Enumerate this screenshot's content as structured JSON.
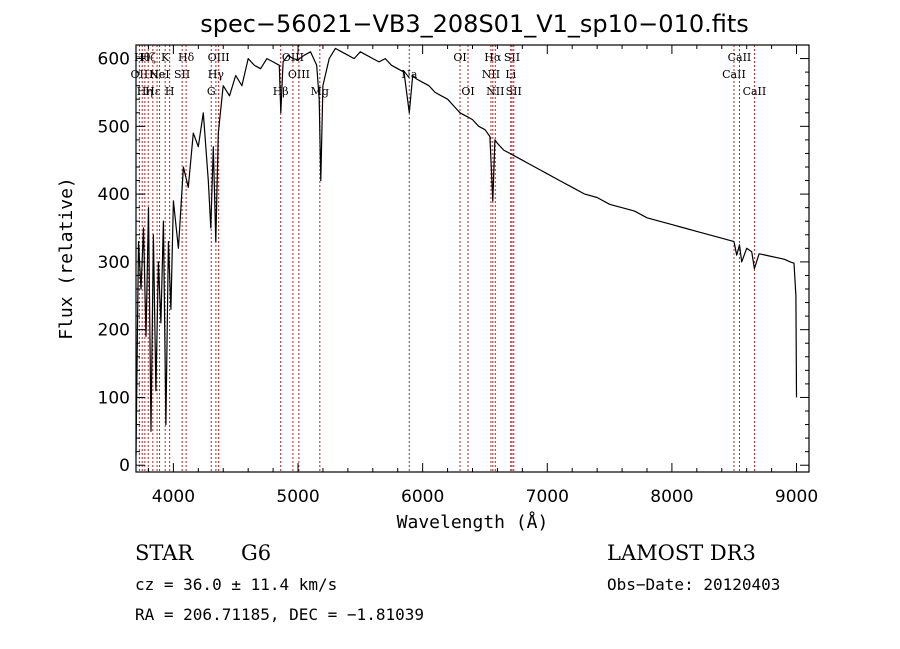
{
  "chart_data": {
    "type": "line",
    "title": "spec−56021−VB3_208S01_V1_sp10−010.fits",
    "xlabel": "Wavelength (Å)",
    "ylabel": "Flux (relative)",
    "xlim": [
      3700,
      9100
    ],
    "ylim": [
      -10,
      620
    ],
    "xticks": [
      4000,
      5000,
      6000,
      7000,
      8000,
      9000
    ],
    "yticks": [
      0,
      100,
      200,
      300,
      400,
      500,
      600
    ],
    "series": [
      {
        "name": "spectrum",
        "x": [
          3700,
          3720,
          3740,
          3760,
          3780,
          3800,
          3820,
          3840,
          3860,
          3880,
          3900,
          3920,
          3940,
          3960,
          3980,
          4000,
          4040,
          4080,
          4120,
          4160,
          4200,
          4240,
          4280,
          4300,
          4320,
          4340,
          4360,
          4400,
          4450,
          4500,
          4550,
          4600,
          4650,
          4700,
          4750,
          4800,
          4850,
          4862,
          4880,
          4920,
          4960,
          5000,
          5050,
          5100,
          5150,
          5170,
          5183,
          5200,
          5250,
          5300,
          5350,
          5400,
          5450,
          5500,
          5550,
          5600,
          5650,
          5700,
          5750,
          5800,
          5850,
          5893,
          5920,
          5950,
          6000,
          6050,
          6100,
          6150,
          6200,
          6250,
          6300,
          6350,
          6400,
          6450,
          6500,
          6540,
          6563,
          6580,
          6600,
          6650,
          6700,
          6750,
          6800,
          6850,
          6900,
          6950,
          7000,
          7100,
          7200,
          7300,
          7400,
          7500,
          7600,
          7700,
          7800,
          7900,
          8000,
          8100,
          8200,
          8300,
          8400,
          8498,
          8520,
          8542,
          8560,
          8600,
          8640,
          8662,
          8700,
          8750,
          8800,
          8850,
          8900,
          8950,
          8980,
          8995,
          9000
        ],
        "values": [
          15,
          330,
          260,
          350,
          190,
          380,
          50,
          340,
          110,
          300,
          210,
          360,
          60,
          330,
          230,
          390,
          320,
          440,
          410,
          490,
          470,
          520,
          420,
          350,
          470,
          330,
          490,
          560,
          545,
          575,
          560,
          600,
          590,
          585,
          600,
          595,
          590,
          520,
          595,
          605,
          600,
          598,
          605,
          610,
          590,
          540,
          420,
          560,
          600,
          615,
          610,
          605,
          600,
          610,
          605,
          600,
          595,
          600,
          590,
          585,
          580,
          520,
          575,
          570,
          565,
          560,
          550,
          545,
          540,
          530,
          520,
          515,
          510,
          500,
          495,
          485,
          390,
          480,
          475,
          465,
          460,
          455,
          450,
          445,
          440,
          435,
          430,
          420,
          410,
          400,
          395,
          385,
          380,
          375,
          365,
          360,
          355,
          350,
          345,
          340,
          335,
          330,
          310,
          325,
          300,
          320,
          315,
          290,
          312,
          310,
          308,
          306,
          304,
          300,
          298,
          250,
          100
        ]
      }
    ],
    "lines": [
      {
        "wave": 3727,
        "label": "OII",
        "row": 2
      },
      {
        "wave": 3750,
        "label": "Hθ",
        "row": 1
      },
      {
        "wave": 3771,
        "label": "Hη",
        "row": 3
      },
      {
        "wave": 3798,
        "label": "Hζ",
        "row": 1
      },
      {
        "wave": 3835,
        "label": "Hε",
        "row": 3
      },
      {
        "wave": 3869,
        "label": "Ne",
        "row": 2
      },
      {
        "wave": 3889,
        "label": "HeI",
        "row": 2
      },
      {
        "wave": 3934,
        "label": "K",
        "row": 1
      },
      {
        "wave": 3970,
        "label": "H",
        "row": 3
      },
      {
        "wave": 4070,
        "label": "SII",
        "row": 2
      },
      {
        "wave": 4102,
        "label": "Hδ",
        "row": 1
      },
      {
        "wave": 4304,
        "label": "G",
        "row": 3
      },
      {
        "wave": 4341,
        "label": "Hγ",
        "row": 2
      },
      {
        "wave": 4363,
        "label": "OIII",
        "row": 1
      },
      {
        "wave": 4861,
        "label": "Hβ",
        "row": 3
      },
      {
        "wave": 4959,
        "label": "OIII",
        "row": 1
      },
      {
        "wave": 5007,
        "label": "OIII",
        "row": 2
      },
      {
        "wave": 5175,
        "label": "Mg",
        "row": 3
      },
      {
        "wave": 5893,
        "label": "Na",
        "row": 2
      },
      {
        "wave": 6300,
        "label": "OI",
        "row": 1
      },
      {
        "wave": 6364,
        "label": "OI",
        "row": 3
      },
      {
        "wave": 6548,
        "label": "NII",
        "row": 2
      },
      {
        "wave": 6563,
        "label": "Hα",
        "row": 1
      },
      {
        "wave": 6583,
        "label": "NII",
        "row": 3
      },
      {
        "wave": 6707,
        "label": "Li",
        "row": 2
      },
      {
        "wave": 6717,
        "label": "SII",
        "row": 1
      },
      {
        "wave": 6731,
        "label": "SII",
        "row": 3
      },
      {
        "wave": 8498,
        "label": "CaII",
        "row": 2
      },
      {
        "wave": 8542,
        "label": "CaII",
        "row": 1
      },
      {
        "wave": 8662,
        "label": "CaII",
        "row": 3
      }
    ]
  },
  "info": {
    "class": "STAR",
    "subclass": "G6",
    "survey": "LAMOST DR3",
    "cz": "cz = 36.0 ± 11.4 km/s",
    "obs_date": "Obs−Date: 20120403",
    "radec": "RA = 206.71185, DEC =  −1.81039"
  },
  "colors": {
    "spectrum": "#000000",
    "marker_lines": "#a52a2a",
    "axes": "#000000"
  }
}
